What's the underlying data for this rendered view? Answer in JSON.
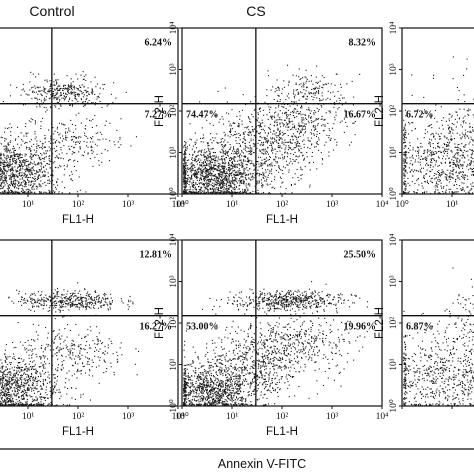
{
  "figure": {
    "column_titles": [
      "Control",
      "CS",
      ""
    ],
    "footer_label": "Annexin V-FITC",
    "colors": {
      "ink": "#111111",
      "dots": "#1a1a1a",
      "background": "#ffffff"
    }
  },
  "chart_data": [
    {
      "type": "scatter",
      "row": 0,
      "col": 0,
      "panel": "Control",
      "xlabel": "FL1-H",
      "ylabel": "FL2-H",
      "log_scale": true,
      "xlim": [
        1,
        10000
      ],
      "ylim": [
        1,
        10000
      ],
      "x_tick_labels": [
        "10⁰",
        "10¹",
        "10²",
        "10³",
        "10⁴"
      ],
      "y_tick_labels": [
        "10⁰",
        "10¹",
        "10²",
        "10³",
        "10⁴"
      ],
      "gate": {
        "x": 30,
        "y": 150
      },
      "quadrants": {
        "upper_left": "",
        "upper_right": "6.24%",
        "lower_left": "",
        "lower_right": "7.27%"
      }
    },
    {
      "type": "scatter",
      "row": 0,
      "col": 1,
      "panel": "CS",
      "xlabel": "FL1-H",
      "ylabel": "FL2-H",
      "log_scale": true,
      "xlim": [
        1,
        10000
      ],
      "ylim": [
        1,
        10000
      ],
      "x_tick_labels": [
        "10⁰",
        "10¹",
        "10²",
        "10³",
        "10⁴"
      ],
      "y_tick_labels": [
        "10⁰",
        "10¹",
        "10²",
        "10³",
        "10⁴"
      ],
      "gate": {
        "x": 30,
        "y": 150
      },
      "quadrants": {
        "upper_left": "",
        "upper_right": "8.32%",
        "lower_left": "74.47%",
        "lower_right": "16.67%"
      }
    },
    {
      "type": "scatter",
      "row": 0,
      "col": 2,
      "panel": "",
      "xlabel": "FL1-H",
      "ylabel": "FL2-H",
      "log_scale": true,
      "xlim": [
        1,
        10000
      ],
      "ylim": [
        1,
        10000
      ],
      "x_tick_labels": [
        "10⁰",
        "10¹"
      ],
      "y_tick_labels": [
        "10⁰",
        "10¹",
        "10²",
        "10³",
        "10⁴"
      ],
      "gate": {
        "x": 30,
        "y": 150
      },
      "quadrants": {
        "upper_left": "",
        "upper_right": "",
        "lower_left": "6.72%",
        "lower_right": ""
      }
    },
    {
      "type": "scatter",
      "row": 1,
      "col": 0,
      "panel": "Control",
      "xlabel": "FL1-H",
      "ylabel": "FL2-H",
      "log_scale": true,
      "xlim": [
        1,
        10000
      ],
      "ylim": [
        1,
        10000
      ],
      "x_tick_labels": [
        "10⁰",
        "10¹",
        "10²",
        "10³",
        "10⁴"
      ],
      "y_tick_labels": [
        "10⁰",
        "10¹",
        "10²",
        "10³",
        "10⁴"
      ],
      "gate": {
        "x": 30,
        "y": 150
      },
      "quadrants": {
        "upper_left": "",
        "upper_right": "12.81%",
        "lower_left": "",
        "lower_right": "16.27%"
      }
    },
    {
      "type": "scatter",
      "row": 1,
      "col": 1,
      "panel": "CS",
      "xlabel": "FL1-H",
      "ylabel": "FL2-H",
      "log_scale": true,
      "xlim": [
        1,
        10000
      ],
      "ylim": [
        1,
        10000
      ],
      "x_tick_labels": [
        "10⁰",
        "10¹",
        "10²",
        "10³",
        "10⁴"
      ],
      "y_tick_labels": [
        "10⁰",
        "10¹",
        "10²",
        "10³",
        "10⁴"
      ],
      "gate": {
        "x": 30,
        "y": 150
      },
      "quadrants": {
        "upper_left": "",
        "upper_right": "25.50%",
        "lower_left": "53.00%",
        "lower_right": "19.96%"
      }
    },
    {
      "type": "scatter",
      "row": 1,
      "col": 2,
      "panel": "",
      "xlabel": "FL1-H",
      "ylabel": "FL2-H",
      "log_scale": true,
      "xlim": [
        1,
        10000
      ],
      "ylim": [
        1,
        10000
      ],
      "x_tick_labels": [],
      "y_tick_labels": [
        "10⁰",
        "10¹",
        "10²",
        "10³",
        "10⁴"
      ],
      "gate": {
        "x": 30,
        "y": 150
      },
      "quadrants": {
        "upper_left": "",
        "upper_right": "",
        "lower_left": "6.87%",
        "lower_right": ""
      }
    }
  ]
}
